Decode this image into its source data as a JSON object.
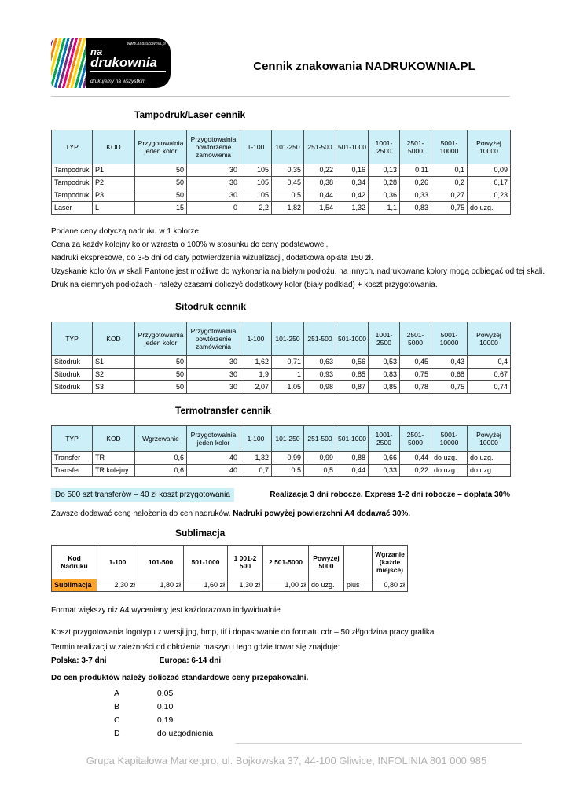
{
  "colors": {
    "table_header_bg": "#cdeff8",
    "note_highlight_bg": "#cdeff8",
    "sublimacja_cell_bg": "#ffa428"
  },
  "header": {
    "title": "Cennik znakowania NADRUKOWNIA.PL",
    "logo": {
      "url_text": "www.nadrukownia.pl",
      "name_line1": "na",
      "name_line2": "drukownia",
      "tagline": "drukujemy na wszystkim"
    }
  },
  "sections": {
    "tampodruk": {
      "title": "Tampodruk/Laser cennik",
      "table": {
        "headers": [
          "TYP",
          "KOD",
          "Przygotowalnia jeden kolor",
          "Przygotowalnia powtórzenie zamówienia",
          "1-100",
          "101-250",
          "251-500",
          "501-1000",
          "1001-2500",
          "2501-5000",
          "5001-10000",
          "Powyżej 10000"
        ],
        "rows": [
          [
            "Tampodruk",
            "P1",
            "50",
            "30",
            "105",
            "0,35",
            "0,22",
            "0,16",
            "0,13",
            "0,11",
            "0,1",
            "0,09"
          ],
          [
            "Tampodruk",
            "P2",
            "50",
            "30",
            "105",
            "0,45",
            "0,38",
            "0,34",
            "0,28",
            "0,26",
            "0,2",
            "0,17"
          ],
          [
            "Tampodruk",
            "P3",
            "50",
            "30",
            "105",
            "0,5",
            "0,44",
            "0,42",
            "0,36",
            "0,33",
            "0,27",
            "0,23"
          ],
          [
            "Laser",
            "L",
            "15",
            "0",
            "2,2",
            "1,82",
            "1,54",
            "1,32",
            "1,1",
            "0,83",
            "0,75",
            "do uzg."
          ]
        ]
      },
      "notes": [
        "Podane ceny dotyczą nadruku w 1 kolorze.",
        "Cena za każdy kolejny kolor wzrasta o 100% w stosunku do ceny podstawowej.",
        "Nadruki ekspresowe, do 3-5 dni od daty potwierdzenia wizualizacji, dodatkowa opłata 150 zł.",
        "Uzyskanie kolorów  w skali Pantone jest możliwe do wykonania na białym podłożu, na innych, nadrukowane kolory mogą odbiegać od tej skali.",
        "Druk na ciemnych podłożach - należy czasami doliczyć dodatkowy kolor (biały podkład) + koszt przygotowania."
      ]
    },
    "sitodruk": {
      "title": "Sitodruk cennik",
      "table": {
        "headers": [
          "TYP",
          "KOD",
          "Przygotowalnia jeden kolor",
          "Przygotowalnia powtórzenie zamówienia",
          "1-100",
          "101-250",
          "251-500",
          "501-1000",
          "1001-2500",
          "2501-5000",
          "5001-10000",
          "Powyżej 10000"
        ],
        "rows": [
          [
            "Sitodruk",
            "S1",
            "50",
            "30",
            "1,62",
            "0,71",
            "0,63",
            "0,56",
            "0,53",
            "0,45",
            "0,43",
            "0,4"
          ],
          [
            "Sitodruk",
            "S2",
            "50",
            "30",
            "1,9",
            "1",
            "0,93",
            "0,85",
            "0,83",
            "0,75",
            "0,68",
            "0,67"
          ],
          [
            "Sitodruk",
            "S3",
            "50",
            "30",
            "2,07",
            "1,05",
            "0,98",
            "0,87",
            "0,85",
            "0,78",
            "0,75",
            "0,74"
          ]
        ]
      }
    },
    "termotransfer": {
      "title": "Termotransfer cennik",
      "table": {
        "headers": [
          "TYP",
          "KOD",
          "Wgrzewanie",
          "Przygotowalnia jeden kolor",
          "1-100",
          "101-250",
          "251-500",
          "501-1000",
          "1001-2500",
          "2501-5000",
          "5001-10000",
          "Powyżej 10000"
        ],
        "rows": [
          [
            "Transfer",
            "TR",
            "0,6",
            "40",
            "1,32",
            "0,99",
            "0,99",
            "0,88",
            "0,66",
            "0,44",
            "do uzg.",
            "do uzg."
          ],
          [
            "Transfer",
            "TR kolejny",
            "0,6",
            "40",
            "0,7",
            "0,5",
            "0,5",
            "0,44",
            "0,33",
            "0,22",
            "do uzg.",
            "do uzg."
          ]
        ]
      },
      "note_highlight": "Do 500 szt transferów – 40 zł koszt przygotowania",
      "note_realizacja": "Realizacja 3 dni robocze. Express 1-2 dni robocze – dopłata 30%",
      "note_nalozenie": "Zawsze dodawać cenę nałożenia do cen nadruków. ",
      "note_nalozenie_bold": "Nadruki powyżej powierzchni A4 dodawać 30%."
    },
    "sublimacja": {
      "title": "Sublimacja",
      "table": {
        "headers": [
          "Kod Nadruku",
          "1-100",
          "101-500",
          "501-1000",
          "1 001-2 500",
          "2 501-5000",
          "Powyżej 5000",
          "",
          "Wgrzanie (każde miejsce)"
        ],
        "rows": [
          [
            {
              "text": "Sublimacja",
              "cls": "orange-cell"
            },
            "2,30 zł",
            "1,80 zł",
            "1,60 zł",
            "1,30 zł",
            "1,00 zł",
            "do uzg.",
            "plus",
            "0,80 zł"
          ]
        ]
      },
      "notes": {
        "format": "Format większy niż  A4 wyceniany  jest każdorazowo indywidualnie.",
        "logotyp": "Koszt przygotowania logotypu z wersji jpg, bmp, tif i dopasowanie do formatu cdr – 50 zł/godzina pracy grafika",
        "termin": "Termin realizacji w zależności od obłożenia maszyn i tego gdzie towar się znajduje:",
        "polska": "Polska: 3-7 dni",
        "europa": "Europa: 6-14 dni",
        "przepakowanie_title": "Do cen produktów należy doliczać standardowe ceny przepakowalni.",
        "przepakowanie": [
          {
            "code": "A",
            "value": "0,05"
          },
          {
            "code": "B",
            "value": "0,10"
          },
          {
            "code": "C",
            "value": "0,19"
          },
          {
            "code": "D",
            "value": "do uzgodnienia"
          }
        ]
      }
    }
  },
  "footer": {
    "text": "Grupa Kapitałowa Marketpro, ul. Bojkowska 37, 44-100 Gliwice, INFOLINIA 801 000 985"
  }
}
